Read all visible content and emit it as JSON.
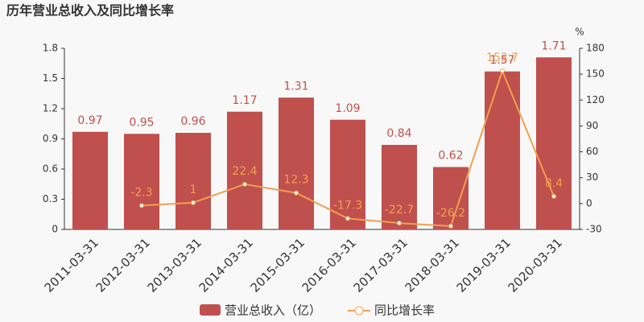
{
  "chart_data": {
    "type": "bar-line",
    "title": "历年营业总收入及同比增长率",
    "categories": [
      "2011-03-31",
      "2012-03-31",
      "2013-03-31",
      "2014-03-31",
      "2015-03-31",
      "2016-03-31",
      "2017-03-31",
      "2018-03-31",
      "2019-03-31",
      "2020-03-31"
    ],
    "series": [
      {
        "name": "营业总收入（亿）",
        "type": "bar",
        "color": "#c0504d",
        "values": [
          0.97,
          0.95,
          0.96,
          1.17,
          1.31,
          1.09,
          0.84,
          0.62,
          1.57,
          1.71
        ]
      },
      {
        "name": "同比增长率",
        "type": "line",
        "axis": "y2",
        "color": "#f0a050",
        "values": [
          null,
          -2.3,
          1,
          22.4,
          12.3,
          -17.3,
          -22.7,
          -26.2,
          153.7,
          8.4
        ]
      }
    ],
    "ylim": [
      0,
      1.8
    ],
    "yticks": [
      0,
      0.3,
      0.6,
      0.9,
      1.2,
      1.5,
      1.8
    ],
    "y2lim": [
      -30,
      180
    ],
    "y2ticks": [
      -30,
      0,
      30,
      60,
      90,
      120,
      150,
      180
    ],
    "y2_label": "%"
  }
}
